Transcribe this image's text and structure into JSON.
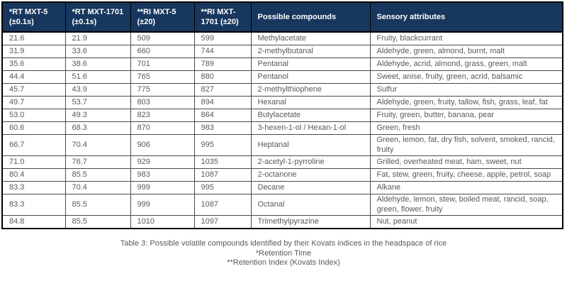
{
  "colors": {
    "header_bg": "#17375e",
    "header_text": "#ffffff",
    "body_text": "#595959"
  },
  "table": {
    "columns": [
      "*RT MXT-5 (±0.1s)",
      "*RT MXT-1701 (±0.1s)",
      "**RI MXT-5 (±20)",
      "**RI MXT-1701 (±20)",
      "Possible compounds",
      "Sensory attributes"
    ],
    "rows": [
      [
        "21.6",
        "21.9",
        "509",
        "599",
        "Methylacetate",
        "Fruity, blackcurrant"
      ],
      [
        "31.9",
        "33.6",
        "660",
        "744",
        "2-methylbutanal",
        "Aldehyde, green, almond, burnt, malt"
      ],
      [
        "35.6",
        "38.6",
        "701",
        "789",
        "Pentanal",
        "Aldehyde, acrid, almond, grass, green, malt"
      ],
      [
        "44.4",
        "51.6",
        "765",
        "880",
        "Pentanol",
        "Sweet, anise, fruity, green, acrid, balsamic"
      ],
      [
        "45.7",
        "43.9",
        "775",
        "827",
        "2-methylthiophene",
        "Sulfur"
      ],
      [
        "49.7",
        "53.7",
        "803",
        "894",
        "Hexanal",
        "Aldehyde, green, fruity, tallow, fish, grass, leaf, fat"
      ],
      [
        "53.0",
        "49.3",
        "823",
        "864",
        "Butylacetate",
        "Fruity, green, butter, banana, pear"
      ],
      [
        "60.6",
        "68.3",
        "870",
        "983",
        "3-hexen-1-ol / Hexan-1-ol",
        "Green, fresh"
      ],
      [
        "66.7",
        "70.4",
        "906",
        "995",
        "Heptanal",
        "Green, lemon, fat, dry fish, solvent, smoked, rancid, fruity"
      ],
      [
        "71.0",
        "76.7",
        "929",
        "1035",
        "2-acetyl-1-pyrroline",
        "Grilled, overheated meat, ham, sweet, nut"
      ],
      [
        "80.4",
        "85.5",
        "983",
        "1087",
        "2-octanone",
        "Fat, stew, green, fruity, cheese, apple, petrol,  soap"
      ],
      [
        "83.3",
        "70.4",
        "999",
        "995",
        "Decane",
        "Alkane"
      ],
      [
        "83.3",
        "85.5",
        "999",
        "1087",
        "Octanal",
        "Aldehyde, lemon, stew, boiled meat, rancid, soap, green, flower, fruity"
      ],
      [
        "84.8",
        "85.5",
        "1010",
        "1097",
        "Trimethylpyrazine",
        "Nut, peanut"
      ]
    ]
  },
  "caption": {
    "line1": "Table 3: Possible volatile compounds identified by their Kovats indices in the headspace of rice",
    "line2": "*Retention Time",
    "line3": "**Retention Index (Kovats Index)"
  }
}
